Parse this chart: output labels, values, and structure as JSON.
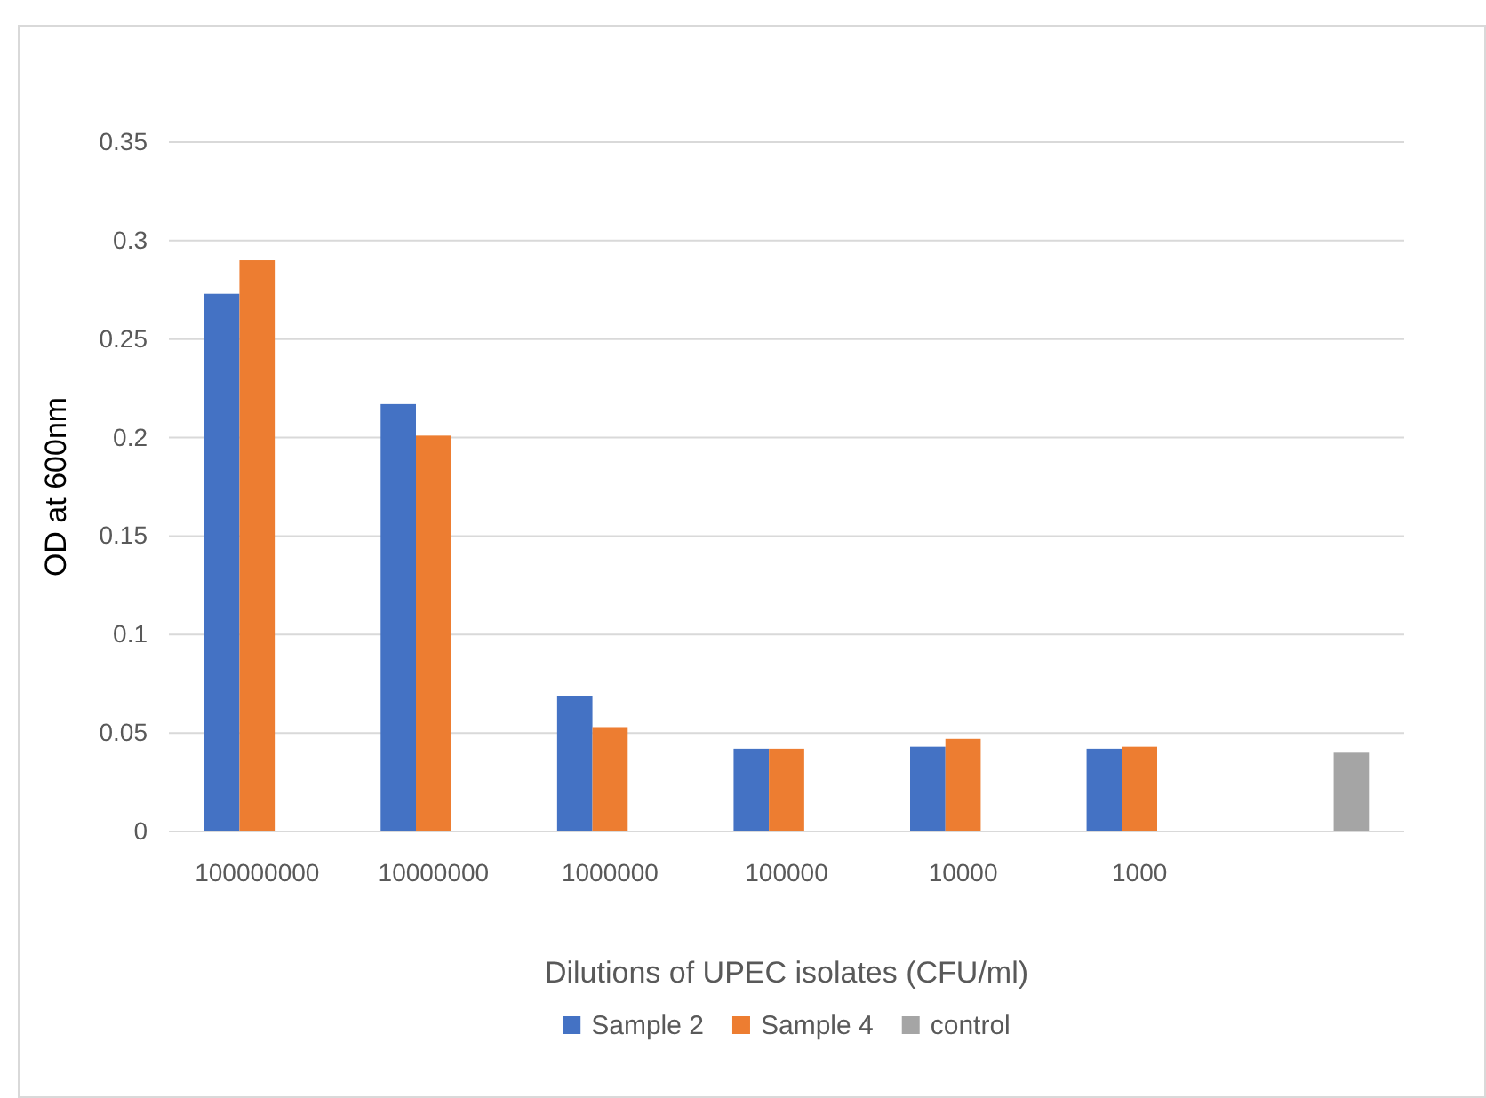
{
  "chart_data": {
    "type": "bar",
    "xlabel": "Dilutions of UPEC isolates (CFU/ml)",
    "ylabel": "OD at 600nm",
    "categories": [
      "100000000",
      "10000000",
      "1000000",
      "100000",
      "10000",
      "1000",
      null
    ],
    "series": [
      {
        "name": "Sample 2",
        "color": "#4472c4",
        "values": [
          0.273,
          0.217,
          0.069,
          0.042,
          0.043,
          0.042,
          null
        ]
      },
      {
        "name": "Sample 4",
        "color": "#ed7d31",
        "values": [
          0.29,
          0.201,
          0.053,
          0.042,
          0.047,
          0.043,
          null
        ]
      },
      {
        "name": "control",
        "color": "#a5a5a5",
        "values": [
          null,
          null,
          null,
          null,
          null,
          null,
          0.04
        ]
      }
    ],
    "ylim": [
      0,
      0.35
    ],
    "yticks": [
      0,
      0.05,
      0.1,
      0.15,
      0.2,
      0.25,
      0.3,
      0.35
    ],
    "grid": "y",
    "legend": "bottom"
  }
}
